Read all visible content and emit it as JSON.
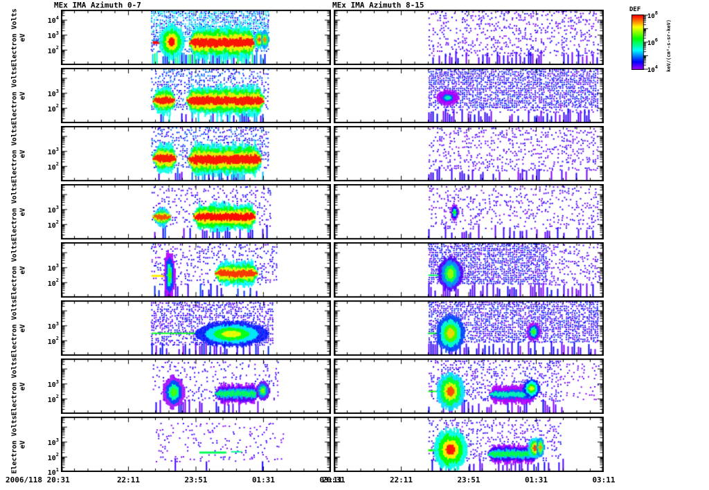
{
  "chart_data": {
    "type": "heatmap",
    "subtype": "energy-time spectrogram quicklook, 2 columns x 8 rows of panels",
    "title_left": "MEx IMA Azimuth 0-7",
    "title_right": "MEx IMA Azimuth 8-15",
    "x": {
      "date": "2006/118",
      "start_display": "2006/118 20:31",
      "tick_labels": [
        "20:31",
        "22:11",
        "23:51",
        "01:31",
        "03:11"
      ],
      "range_minutes": [
        0,
        400
      ],
      "minor_ticks_per_major": 5
    },
    "y": {
      "label": "Electron Volts",
      "sublabel": "eV",
      "scale": "log",
      "range_log10_eV": [
        1.0,
        4.7
      ],
      "decade_labels": {
        "row_first": [
          "4",
          "3",
          "2"
        ],
        "rows_middle": [
          "3",
          "2"
        ],
        "row_last": [
          "3",
          "2",
          "1"
        ]
      }
    },
    "colorbar": {
      "title": "DEF",
      "units_display": "keV/(cm²-s-sr-keV)",
      "scale": "log",
      "tick_exponents": [
        "8",
        "6",
        "4"
      ],
      "palette_top_to_bottom": [
        "#ff0000",
        "#ff8000",
        "#ffff00",
        "#00ff00",
        "#00ffff",
        "#0000ff",
        "#7f00ff"
      ]
    },
    "panels": [
      {
        "column": 0,
        "row": 0,
        "features": [
          {
            "type": "speckle",
            "t": [
              133,
              306
            ],
            "e": [
              2.7,
              4.65
            ],
            "density": 0.85,
            "v": [
              0.12,
              0.4
            ]
          },
          {
            "type": "speckle",
            "t": [
              133,
              306
            ],
            "e": [
              1.9,
              2.7
            ],
            "density": 0.4,
            "v": [
              0.08,
              0.28
            ]
          },
          {
            "type": "vstripes",
            "t": [
              135,
              303
            ],
            "density": 0.85,
            "v": [
              0.1,
              0.55
            ]
          },
          {
            "type": "hline",
            "t": [
              136,
              162
            ],
            "e": 2.5,
            "lw": 4,
            "v": 1.0
          },
          {
            "type": "blob",
            "t": 163,
            "rt": 9,
            "e": 2.55,
            "re": 0.55,
            "v": 1.0
          },
          {
            "type": "band",
            "t": [
              190,
              287
            ],
            "e": 2.5,
            "ew": 0.5,
            "v": 1.0
          },
          {
            "type": "blob",
            "t": 293,
            "rt": 4,
            "e": 2.7,
            "re": 0.3,
            "v": 0.95
          },
          {
            "type": "blob",
            "t": 301,
            "rt": 3,
            "e": 2.7,
            "re": 0.28,
            "v": 0.9
          }
        ]
      },
      {
        "column": 0,
        "row": 1,
        "features": [
          {
            "type": "speckle",
            "t": [
              133,
              306
            ],
            "e": [
              2.0,
              4.65
            ],
            "density": 0.5,
            "v": [
              0.06,
              0.28
            ]
          },
          {
            "type": "vstripes",
            "t": [
              135,
              303
            ],
            "density": 0.45,
            "v": [
              0.06,
              0.38
            ]
          },
          {
            "type": "band",
            "t": [
              136,
              168
            ],
            "e": 2.5,
            "ew": 0.42,
            "v": 1.0
          },
          {
            "type": "band",
            "t": [
              186,
              300
            ],
            "e": 2.5,
            "ew": 0.45,
            "v": 1.0
          }
        ]
      },
      {
        "column": 0,
        "row": 2,
        "features": [
          {
            "type": "speckle",
            "t": [
              133,
              306
            ],
            "e": [
              2.0,
              4.65
            ],
            "density": 0.45,
            "v": [
              0.05,
              0.26
            ]
          },
          {
            "type": "vstripes",
            "t": [
              135,
              300
            ],
            "density": 0.4,
            "v": [
              0.05,
              0.32
            ]
          },
          {
            "type": "band",
            "t": [
              136,
              170
            ],
            "e": 2.52,
            "ew": 0.45,
            "v": 1.0
          },
          {
            "type": "band",
            "t": [
              188,
              296
            ],
            "e": 2.45,
            "ew": 0.5,
            "v": 1.0
          }
        ]
      },
      {
        "column": 0,
        "row": 3,
        "features": [
          {
            "type": "speckle",
            "t": [
              133,
              310
            ],
            "e": [
              1.9,
              4.6
            ],
            "density": 0.22,
            "v": [
              0.03,
              0.16
            ]
          },
          {
            "type": "vstripes",
            "t": [
              135,
              305
            ],
            "density": 0.3,
            "v": [
              0.04,
              0.2
            ]
          },
          {
            "type": "band",
            "t": [
              136,
              162
            ],
            "e": 2.5,
            "ew": 0.28,
            "v": 0.95
          },
          {
            "type": "band",
            "t": [
              196,
              288
            ],
            "e": 2.5,
            "ew": 0.42,
            "v": 1.0
          }
        ]
      },
      {
        "column": 0,
        "row": 4,
        "features": [
          {
            "type": "speckle",
            "t": [
              133,
              320
            ],
            "e": [
              1.9,
              4.6
            ],
            "density": 0.3,
            "v": [
              0.03,
              0.17
            ]
          },
          {
            "type": "vstripes",
            "t": [
              135,
              310
            ],
            "density": 0.3,
            "v": [
              0.04,
              0.2
            ]
          },
          {
            "type": "hline",
            "t": [
              134,
              158
            ],
            "e": 2.45,
            "lw": 3,
            "v": 0.8
          },
          {
            "type": "blob",
            "t": 160,
            "rt": 4,
            "e": 2.5,
            "re": 0.75,
            "v": 0.62
          },
          {
            "type": "band",
            "t": [
              228,
              290
            ],
            "e": 2.6,
            "ew": 0.38,
            "v": 0.97
          }
        ]
      },
      {
        "column": 0,
        "row": 5,
        "features": [
          {
            "type": "speckle",
            "t": [
              133,
              312
            ],
            "e": [
              1.8,
              4.6
            ],
            "density": 0.65,
            "v": [
              0.03,
              0.17
            ]
          },
          {
            "type": "vstripes",
            "t": [
              134,
              308
            ],
            "density": 0.55,
            "v": [
              0.04,
              0.18
            ]
          },
          {
            "type": "hline",
            "t": [
              134,
              215
            ],
            "e": 2.5,
            "lw": 2,
            "v": 0.55
          },
          {
            "type": "blob",
            "t": 252,
            "rt": 26,
            "e": 2.45,
            "re": 0.4,
            "v": 0.78
          }
        ]
      },
      {
        "column": 0,
        "row": 6,
        "features": [
          {
            "type": "speckle",
            "t": [
              135,
              320
            ],
            "e": [
              1.9,
              4.5
            ],
            "density": 0.2,
            "v": [
              0.03,
              0.15
            ]
          },
          {
            "type": "vstripes",
            "t": [
              140,
              300
            ],
            "density": 0.22,
            "v": [
              0.04,
              0.16
            ]
          },
          {
            "type": "blob",
            "t": 166,
            "rt": 8,
            "e": 2.45,
            "re": 0.5,
            "v": 0.63
          },
          {
            "type": "band",
            "t": [
              228,
              292
            ],
            "e": 2.35,
            "ew": 0.3,
            "v": 0.5
          },
          {
            "type": "blob",
            "t": 298,
            "rt": 5,
            "e": 2.55,
            "re": 0.3,
            "v": 0.68
          }
        ]
      },
      {
        "column": 0,
        "row": 7,
        "features": [
          {
            "type": "speckle",
            "t": [
              140,
              330
            ],
            "e": [
              1.8,
              4.3
            ],
            "density": 0.13,
            "v": [
              0.02,
              0.12
            ]
          },
          {
            "type": "vstripes",
            "t": [
              150,
              310
            ],
            "density": 0.13,
            "v": [
              0.04,
              0.15
            ]
          },
          {
            "type": "hline",
            "t": [
              205,
              245
            ],
            "e": 2.3,
            "lw": 3,
            "v": 0.5
          },
          {
            "type": "hline",
            "t": [
              252,
              268
            ],
            "e": 2.35,
            "lw": 2,
            "v": 0.45
          }
        ]
      },
      {
        "column": 1,
        "row": 0,
        "features": [
          {
            "type": "speckle",
            "t": [
              140,
              392
            ],
            "e": [
              1.7,
              4.65
            ],
            "density": 0.3,
            "v": [
              0.02,
              0.14
            ]
          },
          {
            "type": "vstripes",
            "t": [
              140,
              390
            ],
            "density": 0.4,
            "v": [
              0.03,
              0.14
            ]
          }
        ]
      },
      {
        "column": 1,
        "row": 1,
        "features": [
          {
            "type": "speckle",
            "t": [
              140,
              392
            ],
            "e": [
              2.1,
              4.65
            ],
            "density": 0.8,
            "v": [
              0.04,
              0.2
            ]
          },
          {
            "type": "speckle",
            "t": [
              140,
              392
            ],
            "e": [
              1.8,
              2.1
            ],
            "density": 0.3,
            "v": [
              0.03,
              0.15
            ]
          },
          {
            "type": "vstripes",
            "t": [
              140,
              390
            ],
            "density": 0.5,
            "v": [
              0.03,
              0.15
            ]
          },
          {
            "type": "blob",
            "t": 168,
            "rt": 8,
            "e": 2.7,
            "re": 0.25,
            "v": 0.42
          }
        ]
      },
      {
        "column": 1,
        "row": 2,
        "features": [
          {
            "type": "speckle",
            "t": [
              140,
              392
            ],
            "e": [
              1.8,
              4.6
            ],
            "density": 0.28,
            "v": [
              0.02,
              0.13
            ]
          },
          {
            "type": "vstripes",
            "t": [
              140,
              388
            ],
            "density": 0.3,
            "v": [
              0.03,
              0.13
            ]
          }
        ]
      },
      {
        "column": 1,
        "row": 3,
        "features": [
          {
            "type": "speckle",
            "t": [
              140,
              392
            ],
            "e": [
              1.8,
              4.6
            ],
            "density": 0.26,
            "v": [
              0.02,
              0.13
            ]
          },
          {
            "type": "vstripes",
            "t": [
              140,
              388
            ],
            "density": 0.28,
            "v": [
              0.03,
              0.13
            ]
          },
          {
            "type": "blob",
            "t": 178,
            "rt": 3,
            "e": 2.8,
            "re": 0.25,
            "v": 0.58
          }
        ]
      },
      {
        "column": 1,
        "row": 4,
        "features": [
          {
            "type": "speckle",
            "t": [
              140,
              315
            ],
            "e": [
              1.9,
              4.65
            ],
            "density": 0.85,
            "v": [
              0.04,
              0.2
            ]
          },
          {
            "type": "speckle",
            "t": [
              315,
              392
            ],
            "e": [
              1.9,
              4.6
            ],
            "density": 0.3,
            "v": [
              0.02,
              0.13
            ]
          },
          {
            "type": "vstripes",
            "t": [
              140,
              385
            ],
            "density": 0.55,
            "v": [
              0.03,
              0.15
            ]
          },
          {
            "type": "hline",
            "t": [
              140,
              163
            ],
            "e": 2.5,
            "lw": 2,
            "v": 0.5
          },
          {
            "type": "blob",
            "t": 172,
            "rt": 9,
            "e": 2.6,
            "re": 0.55,
            "v": 0.7
          }
        ]
      },
      {
        "column": 1,
        "row": 5,
        "features": [
          {
            "type": "speckle",
            "t": [
              140,
              392
            ],
            "e": [
              1.9,
              4.65
            ],
            "density": 0.8,
            "v": [
              0.04,
              0.19
            ]
          },
          {
            "type": "vstripes",
            "t": [
              140,
              388
            ],
            "density": 0.5,
            "v": [
              0.03,
              0.15
            ]
          },
          {
            "type": "hline",
            "t": [
              140,
              163
            ],
            "e": 2.5,
            "lw": 2,
            "v": 0.55
          },
          {
            "type": "blob",
            "t": 172,
            "rt": 10,
            "e": 2.5,
            "re": 0.6,
            "v": 0.82
          },
          {
            "type": "blob",
            "t": 295,
            "rt": 5,
            "e": 2.6,
            "re": 0.3,
            "v": 0.62
          }
        ]
      },
      {
        "column": 1,
        "row": 6,
        "features": [
          {
            "type": "speckle",
            "t": [
              140,
              335
            ],
            "e": [
              1.9,
              4.6
            ],
            "density": 0.38,
            "v": [
              0.03,
              0.16
            ]
          },
          {
            "type": "speckle",
            "t": [
              335,
              392
            ],
            "e": [
              2.0,
              4.4
            ],
            "density": 0.15,
            "v": [
              0.02,
              0.1
            ]
          },
          {
            "type": "vstripes",
            "t": [
              140,
              345
            ],
            "density": 0.35,
            "v": [
              0.03,
              0.15
            ]
          },
          {
            "type": "hline",
            "t": [
              140,
              164
            ],
            "e": 2.5,
            "lw": 2,
            "v": 0.6
          },
          {
            "type": "blob",
            "t": 172,
            "rt": 10,
            "e": 2.5,
            "re": 0.6,
            "v": 0.95
          },
          {
            "type": "band",
            "t": [
              230,
              298
            ],
            "e": 2.3,
            "ew": 0.28,
            "v": 0.42
          },
          {
            "type": "blob",
            "t": 292,
            "rt": 6,
            "e": 2.7,
            "re": 0.3,
            "v": 0.78
          }
        ]
      },
      {
        "column": 1,
        "row": 7,
        "features": [
          {
            "type": "speckle",
            "t": [
              140,
              335
            ],
            "e": [
              1.8,
              4.5
            ],
            "density": 0.3,
            "v": [
              0.03,
              0.15
            ]
          },
          {
            "type": "vstripes",
            "t": [
              145,
              340
            ],
            "density": 0.4,
            "v": [
              0.03,
              0.15
            ]
          },
          {
            "type": "hline",
            "t": [
              140,
              162
            ],
            "e": 2.45,
            "lw": 3,
            "v": 0.6
          },
          {
            "type": "blob",
            "t": 172,
            "rt": 12,
            "e": 2.5,
            "re": 0.65,
            "v": 1.0
          },
          {
            "type": "band",
            "t": [
              228,
              302
            ],
            "e": 2.2,
            "ew": 0.28,
            "v": 0.52
          },
          {
            "type": "blob",
            "t": 297,
            "rt": 5,
            "e": 2.6,
            "re": 0.35,
            "v": 0.95
          },
          {
            "type": "blob",
            "t": 305,
            "rt": 3,
            "e": 2.65,
            "re": 0.3,
            "v": 0.88
          }
        ]
      }
    ]
  }
}
